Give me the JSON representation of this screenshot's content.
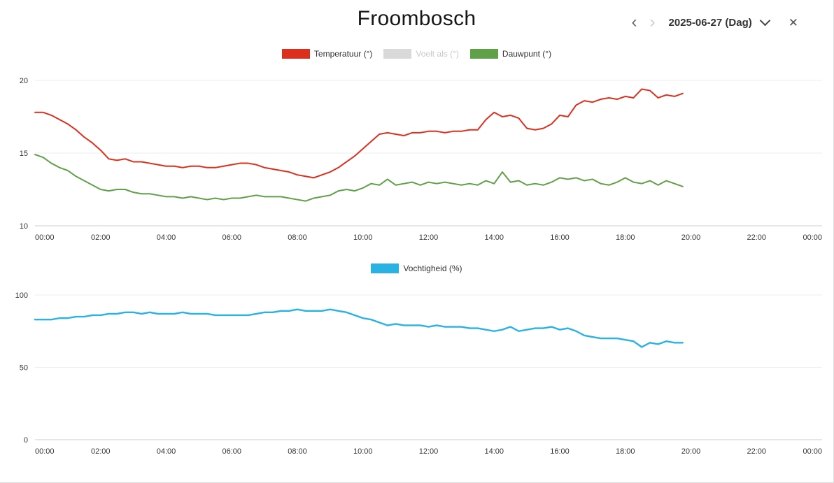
{
  "page": {
    "title": "Froombosch"
  },
  "controls": {
    "prev_icon": "‹",
    "next_icon": "›",
    "date_label": "2025-06-27 (Dag)",
    "close_icon": "✕"
  },
  "chart_data": [
    {
      "type": "line",
      "title": "",
      "x_ticks": [
        "00:00",
        "02:00",
        "04:00",
        "06:00",
        "08:00",
        "10:00",
        "12:00",
        "14:00",
        "16:00",
        "18:00",
        "20:00",
        "22:00",
        "00:00"
      ],
      "x_range_hours": [
        0,
        24
      ],
      "x_start_hour": 0,
      "x_step_hours": 0.25,
      "ylim": [
        10,
        20
      ],
      "y_ticks": [
        10,
        15,
        20
      ],
      "grid": true,
      "legend_position": "top",
      "series": [
        {
          "name": "Temperatuur (°)",
          "color": "#db301e",
          "visible": true,
          "values": [
            17.8,
            17.8,
            17.6,
            17.3,
            17.0,
            16.6,
            16.1,
            15.7,
            15.2,
            14.6,
            14.5,
            14.6,
            14.4,
            14.4,
            14.3,
            14.2,
            14.1,
            14.1,
            14.0,
            14.1,
            14.1,
            14.0,
            14.0,
            14.1,
            14.2,
            14.3,
            14.3,
            14.2,
            14.0,
            13.9,
            13.8,
            13.7,
            13.5,
            13.4,
            13.3,
            13.5,
            13.7,
            14.0,
            14.4,
            14.8,
            15.3,
            15.8,
            16.3,
            16.4,
            16.3,
            16.2,
            16.4,
            16.4,
            16.5,
            16.5,
            16.4,
            16.5,
            16.5,
            16.6,
            16.6,
            17.3,
            17.8,
            17.5,
            17.6,
            17.4,
            16.7,
            16.6,
            16.7,
            17.0,
            17.6,
            17.5,
            18.3,
            18.6,
            18.5,
            18.7,
            18.8,
            18.7,
            18.9,
            18.8,
            19.4,
            19.3,
            18.8,
            19.0,
            18.9,
            19.1
          ]
        },
        {
          "name": "Voelt als (°)",
          "color": "#d9d9d9",
          "visible": false,
          "values": []
        },
        {
          "name": "Dauwpunt (°)",
          "color": "#5fa048",
          "visible": true,
          "values": [
            14.9,
            14.7,
            14.3,
            14.0,
            13.8,
            13.4,
            13.1,
            12.8,
            12.5,
            12.4,
            12.5,
            12.5,
            12.3,
            12.2,
            12.2,
            12.1,
            12.0,
            12.0,
            11.9,
            12.0,
            11.9,
            11.8,
            11.9,
            11.8,
            11.9,
            11.9,
            12.0,
            12.1,
            12.0,
            12.0,
            12.0,
            11.9,
            11.8,
            11.7,
            11.9,
            12.0,
            12.1,
            12.4,
            12.5,
            12.4,
            12.6,
            12.9,
            12.8,
            13.2,
            12.8,
            12.9,
            13.0,
            12.8,
            13.0,
            12.9,
            13.0,
            12.9,
            12.8,
            12.9,
            12.8,
            13.1,
            12.9,
            13.7,
            13.0,
            13.1,
            12.8,
            12.9,
            12.8,
            13.0,
            13.3,
            13.2,
            13.3,
            13.1,
            13.2,
            12.9,
            12.8,
            13.0,
            13.3,
            13.0,
            12.9,
            13.1,
            12.8,
            13.1,
            12.9,
            12.7
          ]
        }
      ]
    },
    {
      "type": "line",
      "title": "",
      "x_ticks": [
        "00:00",
        "02:00",
        "04:00",
        "06:00",
        "08:00",
        "10:00",
        "12:00",
        "14:00",
        "16:00",
        "18:00",
        "20:00",
        "22:00",
        "00:00"
      ],
      "x_range_hours": [
        0,
        24
      ],
      "x_start_hour": 0,
      "x_step_hours": 0.25,
      "ylim": [
        0,
        100
      ],
      "y_ticks": [
        0,
        50,
        100
      ],
      "grid": true,
      "legend_position": "top",
      "series": [
        {
          "name": "Vochtigheid (%)",
          "color": "#29b2e2",
          "visible": true,
          "values": [
            83,
            83,
            83,
            84,
            84,
            85,
            85,
            86,
            86,
            87,
            87,
            88,
            88,
            87,
            88,
            87,
            87,
            87,
            88,
            87,
            87,
            87,
            86,
            86,
            86,
            86,
            86,
            87,
            88,
            88,
            89,
            89,
            90,
            89,
            89,
            89,
            90,
            89,
            88,
            86,
            84,
            83,
            81,
            79,
            80,
            79,
            79,
            79,
            78,
            79,
            78,
            78,
            78,
            77,
            77,
            76,
            75,
            76,
            78,
            75,
            76,
            77,
            77,
            78,
            76,
            77,
            75,
            72,
            71,
            70,
            70,
            70,
            69,
            68,
            64,
            67,
            66,
            68,
            67,
            67
          ]
        }
      ]
    }
  ]
}
